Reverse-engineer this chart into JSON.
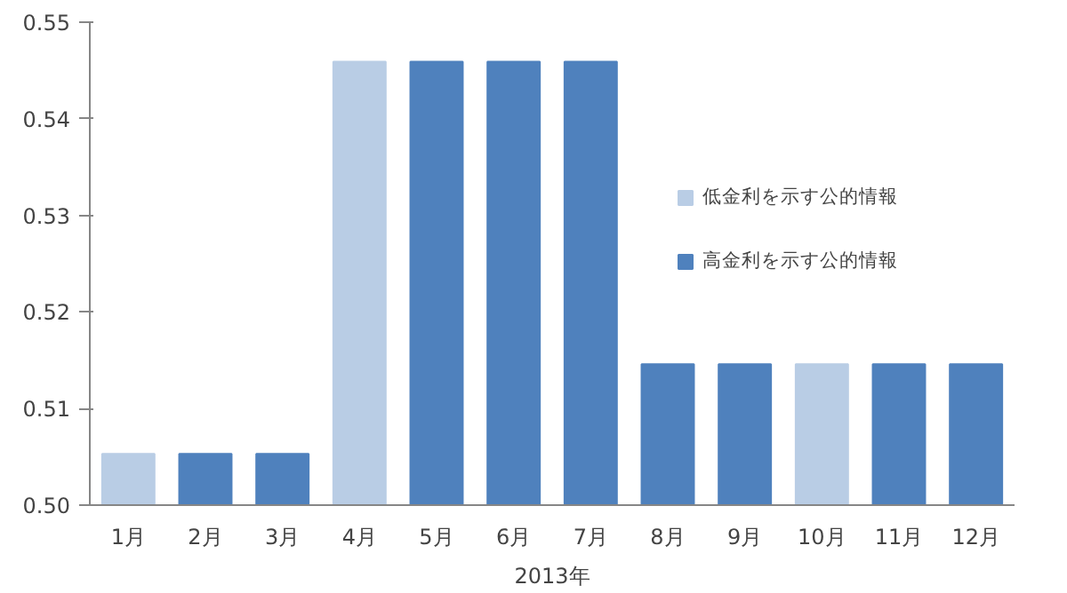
{
  "chart_data": {
    "type": "bar",
    "xlabel": "2013年",
    "categories": [
      "1月",
      "2月",
      "3月",
      "4月",
      "5月",
      "6月",
      "7月",
      "8月",
      "9月",
      "10月",
      "11月",
      "12月"
    ],
    "series": [
      {
        "name": "低金利を示す公的情報",
        "color": "#b9cde5",
        "values": [
          0.5053,
          null,
          null,
          0.5459,
          null,
          null,
          null,
          null,
          null,
          0.5146,
          null,
          null
        ]
      },
      {
        "name": "高金利を示す公的情報",
        "color": "#4f81bd",
        "values": [
          null,
          0.5053,
          0.5053,
          null,
          0.5459,
          0.5459,
          0.5459,
          0.5146,
          0.5146,
          null,
          0.5146,
          0.5146
        ]
      }
    ],
    "ylim": [
      0.5,
      0.55
    ],
    "yticks": [
      {
        "value": 0.5,
        "label": "0.50"
      },
      0.51,
      0.52,
      0.53,
      0.54,
      0.55
    ],
    "grid": false,
    "legend": "right"
  }
}
